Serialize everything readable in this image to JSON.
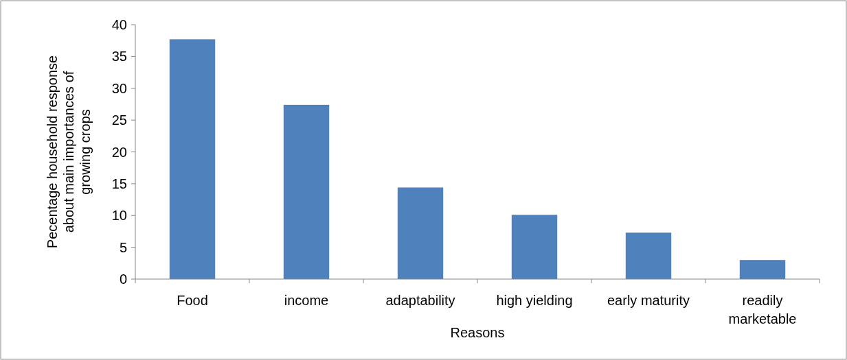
{
  "chart_data": {
    "type": "bar",
    "xlabel": "Reasons",
    "ylabel": "Pecentage household response about main importances of growing crops",
    "categories": [
      "Food",
      "income",
      "adaptability",
      "high yielding",
      "early maturity",
      "readily marketable"
    ],
    "values": [
      37.7,
      27.4,
      14.4,
      10.1,
      7.3,
      3.0
    ],
    "color": "#4f81bd",
    "ylim": [
      0,
      40
    ],
    "yticks": [
      0,
      5,
      10,
      15,
      20,
      25,
      30,
      35,
      40
    ],
    "grid": false
  }
}
